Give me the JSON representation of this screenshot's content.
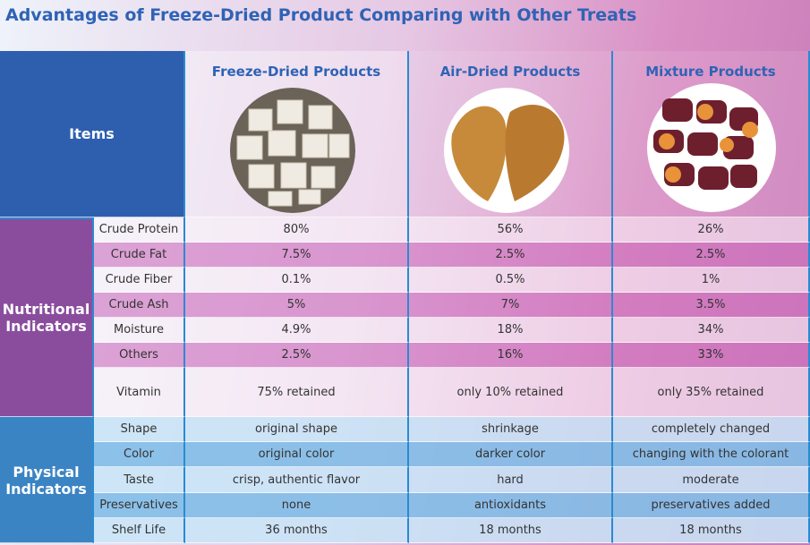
{
  "header": {
    "title": "Advantages of Freeze-Dried Product Comparing with Other Treats"
  },
  "table": {
    "columns": [
      "Items",
      "Freeze-Dried Products",
      "Air-Dried Products",
      "Mixture Products"
    ],
    "groups": [
      {
        "label": "Nutritional Indicators",
        "rows": [
          [
            "Crude Protein",
            "80%",
            "56%",
            "26%"
          ],
          [
            "Crude Fat",
            "7.5%",
            "2.5%",
            "2.5%"
          ],
          [
            "Crude Fiber",
            "0.1%",
            "0.5%",
            "1%"
          ],
          [
            "Crude Ash",
            "5%",
            "7%",
            "3.5%"
          ],
          [
            "Moisture",
            "4.9%",
            "18%",
            "34%"
          ],
          [
            "Others",
            "2.5%",
            "16%",
            "33%"
          ],
          [
            "Vitamin",
            "75% retained",
            "only 10% retained",
            "only 35% retained"
          ]
        ]
      },
      {
        "label": "Physical Indicators",
        "rows": [
          [
            "Shape",
            "original shape",
            "shrinkage",
            "completely changed"
          ],
          [
            "Color",
            "original color",
            "darker color",
            "changing with the colorant"
          ],
          [
            "Taste",
            "crisp, authentic flavor",
            "hard",
            "moderate"
          ],
          [
            "Preservatives",
            "none",
            "antioxidants",
            "preservatives added"
          ],
          [
            "Shelf Life",
            "36 months",
            "18 months",
            "18 months"
          ]
        ]
      }
    ]
  }
}
